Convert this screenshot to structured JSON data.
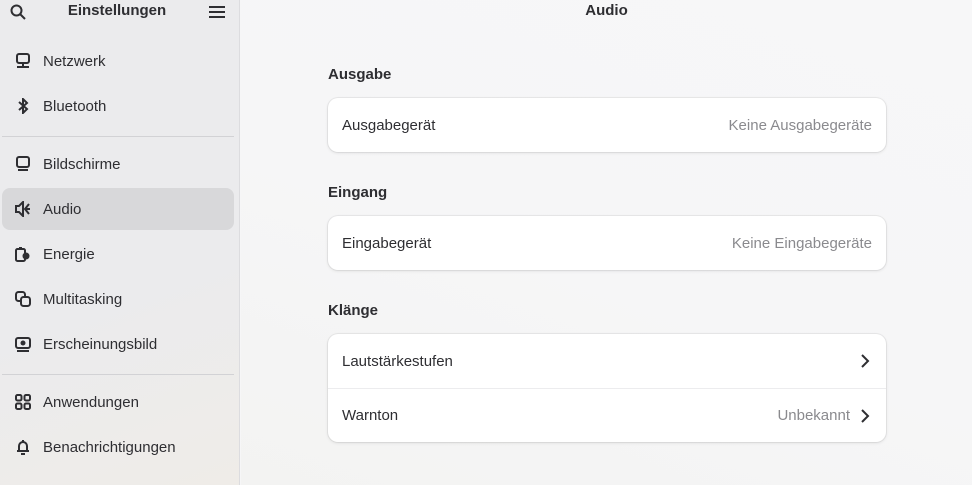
{
  "sidebar": {
    "title": "Einstellungen",
    "items": [
      {
        "label": "Netzwerk",
        "icon": "network-icon"
      },
      {
        "label": "Bluetooth",
        "icon": "bluetooth-icon"
      },
      {
        "label": "Bildschirme",
        "icon": "display-icon"
      },
      {
        "label": "Audio",
        "icon": "speaker-icon",
        "selected": true
      },
      {
        "label": "Energie",
        "icon": "power-icon"
      },
      {
        "label": "Multitasking",
        "icon": "multitasking-icon"
      },
      {
        "label": "Erscheinungsbild",
        "icon": "appearance-icon"
      },
      {
        "label": "Anwendungen",
        "icon": "apps-icon"
      },
      {
        "label": "Benachrichtigungen",
        "icon": "bell-icon"
      }
    ]
  },
  "main": {
    "title": "Audio",
    "sections": [
      {
        "heading": "Ausgabe",
        "rows": [
          {
            "label": "Ausgabegerät",
            "value": "Keine Ausgabegeräte"
          }
        ]
      },
      {
        "heading": "Eingang",
        "rows": [
          {
            "label": "Eingabegerät",
            "value": "Keine Eingabegeräte"
          }
        ]
      },
      {
        "heading": "Klänge",
        "rows": [
          {
            "label": "Lautstärkestufen",
            "value": ""
          },
          {
            "label": "Warnton",
            "value": "Unbekannt"
          }
        ]
      }
    ]
  }
}
